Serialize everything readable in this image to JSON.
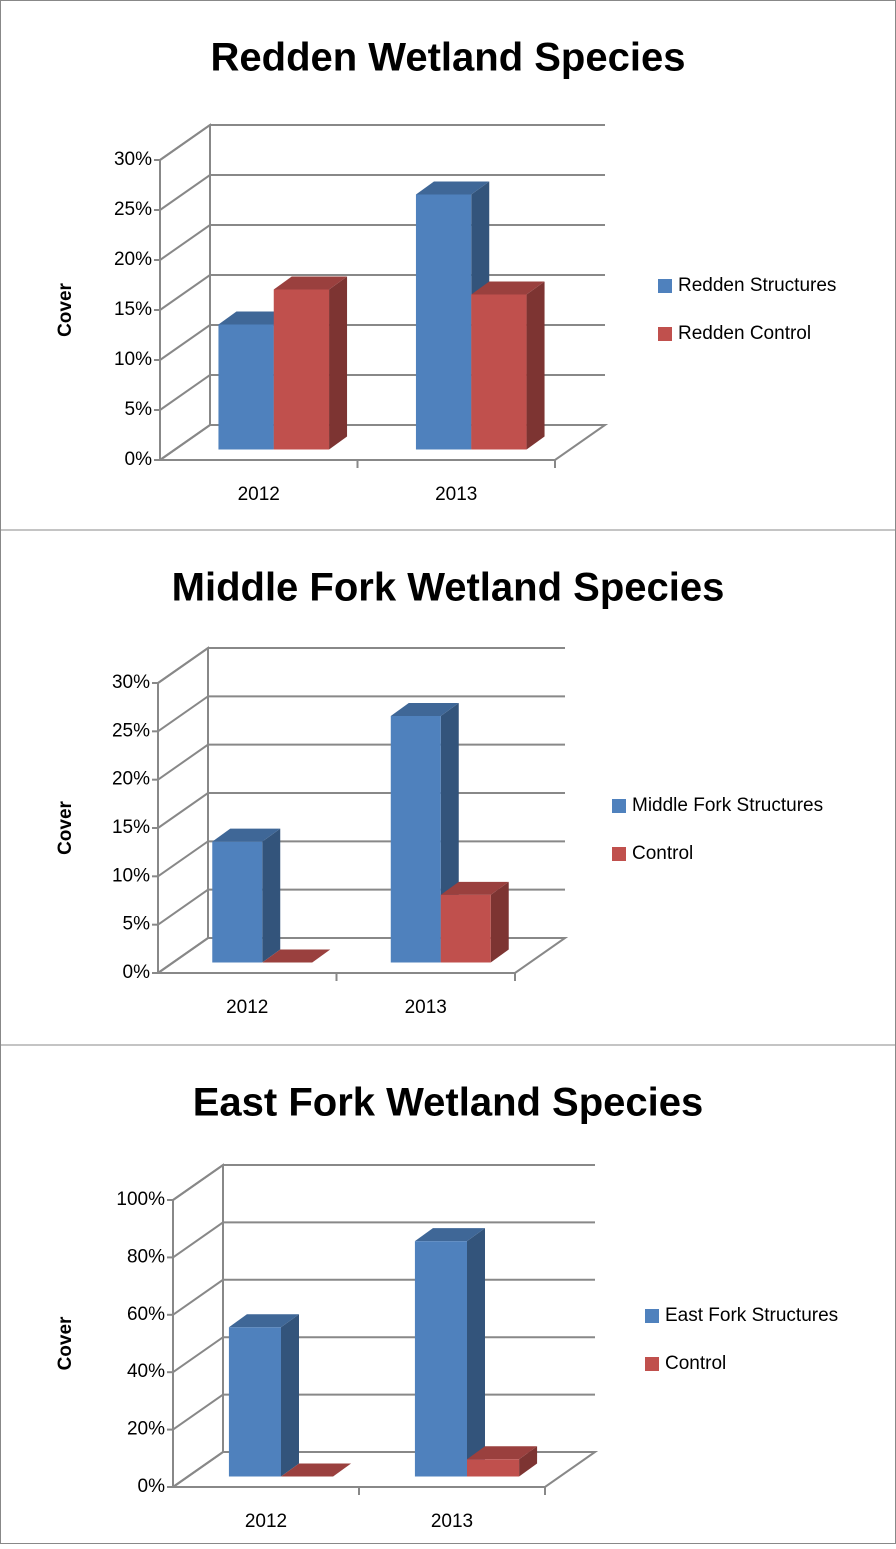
{
  "chart_data": [
    {
      "type": "bar3d",
      "title": "Redden Wetland Species",
      "y_label": "Cover",
      "categories": [
        "2012",
        "2013"
      ],
      "series": [
        {
          "name": "Redden Structures",
          "color": "#4f81bd",
          "values": [
            12.5,
            25.5
          ]
        },
        {
          "name": "Redden Control",
          "color": "#c0504d",
          "values": [
            16,
            15.5
          ]
        }
      ],
      "ylim": [
        0,
        30
      ],
      "yticks": [
        {
          "value": 0,
          "label": "0%"
        },
        {
          "value": 5,
          "label": "5%"
        },
        {
          "value": 10,
          "label": "10%"
        },
        {
          "value": 15,
          "label": "15%"
        },
        {
          "value": 20,
          "label": "20%"
        },
        {
          "value": 25,
          "label": "25%"
        },
        {
          "value": 30,
          "label": "30%"
        }
      ],
      "grid": true,
      "legend": "right"
    },
    {
      "type": "bar3d",
      "title": "Middle Fork Wetland Species",
      "y_label": "Cover",
      "categories": [
        "2012",
        "2013"
      ],
      "series": [
        {
          "name": "Middle Fork Structures",
          "color": "#4f81bd",
          "values": [
            12.5,
            25.5
          ]
        },
        {
          "name": "Control",
          "color": "#c0504d",
          "values": [
            0,
            7
          ]
        }
      ],
      "ylim": [
        0,
        30
      ],
      "yticks": [
        {
          "value": 0,
          "label": "0%"
        },
        {
          "value": 5,
          "label": "5%"
        },
        {
          "value": 10,
          "label": "10%"
        },
        {
          "value": 15,
          "label": "15%"
        },
        {
          "value": 20,
          "label": "20%"
        },
        {
          "value": 25,
          "label": "25%"
        },
        {
          "value": 30,
          "label": "30%"
        }
      ],
      "grid": true,
      "legend": "right"
    },
    {
      "type": "bar3d",
      "title": "East Fork Wetland Species",
      "y_label": "Cover",
      "categories": [
        "2012",
        "2013"
      ],
      "series": [
        {
          "name": "East Fork Structures",
          "color": "#4f81bd",
          "values": [
            52,
            82
          ]
        },
        {
          "name": "Control",
          "color": "#c0504d",
          "values": [
            0,
            6
          ]
        }
      ],
      "ylim": [
        0,
        100
      ],
      "yticks": [
        {
          "value": 0,
          "label": "0%"
        },
        {
          "value": 20,
          "label": "20%"
        },
        {
          "value": 40,
          "label": "40%"
        },
        {
          "value": 60,
          "label": "60%"
        },
        {
          "value": 80,
          "label": "80%"
        },
        {
          "value": 100,
          "label": "100%"
        }
      ],
      "grid": true,
      "legend": "right"
    }
  ]
}
